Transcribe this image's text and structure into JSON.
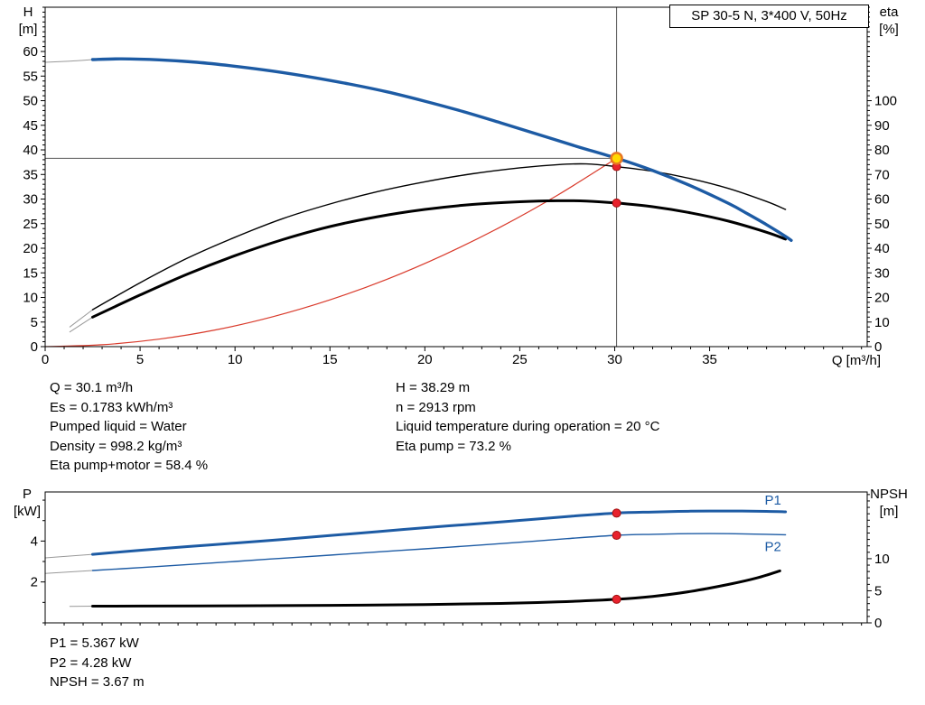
{
  "title_box": {
    "label": "SP 30-5 N, 3*400 V, 50Hz"
  },
  "colors": {
    "curve_blue": "#1d5ba4",
    "curve_black": "#000000",
    "system_red": "#d93a2b",
    "lead_gray": "#999999",
    "guide_gray": "#555555",
    "marker_red": "#e8222d",
    "marker_red_stroke": "#a01010",
    "marker_yellow_fill": "#ffd800",
    "marker_yellow_stroke": "#e87722"
  },
  "top_chart": {
    "left_axis": {
      "name": "H",
      "unit": "[m]"
    },
    "right_axis": {
      "name": "eta",
      "unit": "[%]"
    },
    "x_axis": {
      "label": "Q [m³/h]"
    }
  },
  "bottom_chart": {
    "left_axis": {
      "name": "P",
      "unit": "[kW]"
    },
    "right_axis": {
      "name": "NPSH",
      "unit": "[m]"
    }
  },
  "info_panel": {
    "left": [
      "Q = 30.1 m³/h",
      "Es = 0.1783 kWh/m³",
      "Pumped liquid = Water",
      "Density = 998.2 kg/m³",
      "Eta pump+motor = 58.4 %"
    ],
    "right": [
      "H = 38.29 m",
      "n = 2913 rpm",
      "Liquid temperature during operation = 20 °C",
      "Eta pump = 73.2 %"
    ]
  },
  "results_panel": [
    "P1 = 5.367 kW",
    "P2 = 4.28 kW",
    "NPSH = 3.67 m"
  ],
  "chart_data": [
    {
      "type": "line",
      "title": "SP 30-5 N, 3*400 V, 50Hz",
      "xlabel": "Q [m³/h]",
      "ylabel_left": "H [m]",
      "ylabel_right": "eta [%]",
      "xlim": [
        0,
        43.3
      ],
      "ylim_left": [
        0,
        69
      ],
      "ylim_right": [
        0,
        138
      ],
      "xticks": {
        "minor": 1,
        "labels": [
          0,
          5,
          10,
          15,
          20,
          25,
          30,
          35
        ]
      },
      "yticks_left": {
        "minor": 1,
        "labels": [
          0,
          5,
          10,
          15,
          20,
          25,
          30,
          35,
          40,
          45,
          50,
          55,
          60
        ]
      },
      "yticks_right": {
        "minor": 2,
        "labels": [
          0,
          10,
          20,
          30,
          40,
          50,
          60,
          70,
          80,
          90,
          100
        ]
      },
      "duty_point": {
        "q_m3h": 30.1,
        "h_m": 38.29,
        "eta_pump_pct": 73.2,
        "eta_pump_motor_pct": 58.4,
        "es_kwh_m3": 0.1783,
        "n_rpm": 2913
      },
      "guides": [
        {
          "type": "v",
          "x": 30.1,
          "color": "#555555",
          "name": "duty-flow-guide-line"
        },
        {
          "type": "h",
          "y": 38.29,
          "axis": "left",
          "x_end": 30.1,
          "color": "#555555",
          "name": "duty-head-guide-line"
        }
      ],
      "series": [
        {
          "id": "system-curve",
          "axis": "left",
          "color": "#d93a2b",
          "width": 1.2,
          "points": [
            [
              0,
              0
            ],
            [
              3,
              0.38
            ],
            [
              6,
              1.52
            ],
            [
              9,
              3.42
            ],
            [
              12,
              6.09
            ],
            [
              15,
              9.51
            ],
            [
              18,
              13.69
            ],
            [
              21,
              18.64
            ],
            [
              24,
              24.35
            ],
            [
              27,
              30.81
            ],
            [
              30.1,
              38.29
            ]
          ]
        },
        {
          "id": "head-curve-lead",
          "axis": "left",
          "color": "#999999",
          "width": 1,
          "points": [
            [
              0,
              57.8
            ],
            [
              1.3,
              58.05
            ],
            [
              2.5,
              58.35
            ]
          ]
        },
        {
          "id": "eta-pump-curve-lead",
          "axis": "right",
          "color": "#999999",
          "width": 1,
          "points": [
            [
              1.3,
              8
            ],
            [
              2.5,
              15
            ]
          ]
        },
        {
          "id": "eta-pump-motor-curve-lead",
          "axis": "right",
          "color": "#999999",
          "width": 1,
          "points": [
            [
              1.3,
              6
            ],
            [
              2.5,
              12
            ]
          ]
        },
        {
          "id": "eta-pump-curve",
          "axis": "right",
          "color": "#000000",
          "width": 1.4,
          "points": [
            [
              2.5,
              15
            ],
            [
              5,
              26
            ],
            [
              7.5,
              36
            ],
            [
              10,
              44.5
            ],
            [
              12.5,
              52
            ],
            [
              15,
              58
            ],
            [
              17.5,
              63
            ],
            [
              20,
              67
            ],
            [
              22.5,
              70.3
            ],
            [
              25,
              72.7
            ],
            [
              27,
              74
            ],
            [
              28.5,
              74.3
            ],
            [
              30.1,
              73.2
            ],
            [
              32,
              71.3
            ],
            [
              34,
              68.3
            ],
            [
              36,
              64.3
            ],
            [
              38,
              59
            ],
            [
              39,
              55.8
            ]
          ]
        },
        {
          "id": "eta-pump-motor-curve",
          "axis": "right",
          "color": "#000000",
          "width": 3,
          "points": [
            [
              2.5,
              12
            ],
            [
              5,
              21
            ],
            [
              7.5,
              29.5
            ],
            [
              10,
              37
            ],
            [
              12.5,
              43.5
            ],
            [
              15,
              48.8
            ],
            [
              17.5,
              52.8
            ],
            [
              20,
              55.8
            ],
            [
              22.5,
              57.8
            ],
            [
              25,
              58.9
            ],
            [
              27,
              59.3
            ],
            [
              28.5,
              59.2
            ],
            [
              30.1,
              58.4
            ],
            [
              32,
              56.9
            ],
            [
              34,
              54.4
            ],
            [
              36,
              51
            ],
            [
              38,
              46.5
            ],
            [
              39,
              43.7
            ]
          ]
        },
        {
          "id": "head-curve",
          "axis": "left",
          "color": "#1d5ba4",
          "width": 3.4,
          "points": [
            [
              2.5,
              58.35
            ],
            [
              4,
              58.5
            ],
            [
              6,
              58.3
            ],
            [
              8,
              57.8
            ],
            [
              10,
              57
            ],
            [
              12,
              56
            ],
            [
              14,
              54.8
            ],
            [
              16,
              53.4
            ],
            [
              18,
              51.8
            ],
            [
              20,
              49.9
            ],
            [
              22,
              47.8
            ],
            [
              24,
              45.5
            ],
            [
              26,
              43.1
            ],
            [
              28,
              40.7
            ],
            [
              30.1,
              38.29
            ],
            [
              32,
              35.8
            ],
            [
              34,
              32.7
            ],
            [
              36,
              29.1
            ],
            [
              37,
              27
            ],
            [
              38,
              24.8
            ],
            [
              39,
              22.4
            ],
            [
              39.3,
              21.6
            ]
          ]
        }
      ],
      "markers": [
        {
          "q": 30.1,
          "val": 58.4,
          "axis": "right",
          "style": "red",
          "name": "eta-pump-motor-point-marker"
        },
        {
          "q": 30.1,
          "val": 73.2,
          "axis": "right",
          "style": "red",
          "name": "eta-pump-point-marker"
        },
        {
          "q": 30.1,
          "val": 38.29,
          "axis": "left",
          "style": "duty",
          "name": "duty-point-marker"
        }
      ]
    },
    {
      "type": "line",
      "xlabel": "Q [m³/h]",
      "ylabel_left": "P [kW]",
      "ylabel_right": "NPSH [m]",
      "xlim": [
        0,
        43.3
      ],
      "ylim_left": [
        0,
        6.4
      ],
      "ylim_right": [
        0,
        20.4
      ],
      "xticks": {
        "minor": 1,
        "labels": []
      },
      "yticks_left": {
        "minor": 1,
        "labels": [
          2,
          4
        ]
      },
      "yticks_right": {
        "minor": 1,
        "labels": [
          0,
          5,
          10
        ]
      },
      "duty_point": {
        "q_m3h": 30.1,
        "p1_kw": 5.367,
        "p2_kw": 4.28,
        "npsh_m": 3.67
      },
      "series": [
        {
          "id": "p1-curve-lead",
          "axis": "left",
          "color": "#999999",
          "width": 1,
          "points": [
            [
              0,
              3.18
            ],
            [
              2.5,
              3.35
            ]
          ]
        },
        {
          "id": "p2-curve-lead",
          "axis": "left",
          "color": "#999999",
          "width": 1,
          "points": [
            [
              0,
              2.42
            ],
            [
              2.5,
              2.56
            ]
          ]
        },
        {
          "id": "npsh-curve-lead",
          "axis": "right",
          "color": "#999999",
          "width": 1,
          "points": [
            [
              1.3,
              2.58
            ],
            [
              2.5,
              2.6
            ]
          ]
        },
        {
          "id": "p1-curve",
          "axis": "left",
          "color": "#1d5ba4",
          "width": 3,
          "points": [
            [
              2.5,
              3.35
            ],
            [
              5,
              3.55
            ],
            [
              7.5,
              3.73
            ],
            [
              10,
              3.9
            ],
            [
              12.5,
              4.08
            ],
            [
              15,
              4.27
            ],
            [
              17.5,
              4.46
            ],
            [
              20,
              4.65
            ],
            [
              22.5,
              4.83
            ],
            [
              25,
              5.01
            ],
            [
              27.5,
              5.2
            ],
            [
              30.1,
              5.367
            ],
            [
              32,
              5.42
            ],
            [
              34,
              5.46
            ],
            [
              36,
              5.47
            ],
            [
              38,
              5.45
            ],
            [
              39,
              5.43
            ]
          ]
        },
        {
          "id": "p2-curve",
          "axis": "left",
          "color": "#1d5ba4",
          "width": 1.4,
          "points": [
            [
              2.5,
              2.56
            ],
            [
              5,
              2.7
            ],
            [
              7.5,
              2.85
            ],
            [
              10,
              3
            ],
            [
              12.5,
              3.16
            ],
            [
              15,
              3.31
            ],
            [
              17.5,
              3.47
            ],
            [
              20,
              3.62
            ],
            [
              22.5,
              3.78
            ],
            [
              25,
              3.94
            ],
            [
              27.5,
              4.12
            ],
            [
              30.1,
              4.28
            ],
            [
              32,
              4.33
            ],
            [
              34,
              4.36
            ],
            [
              36,
              4.36
            ],
            [
              38,
              4.33
            ],
            [
              39,
              4.31
            ]
          ]
        },
        {
          "id": "npsh-curve",
          "axis": "right",
          "color": "#000000",
          "width": 3,
          "points": [
            [
              2.5,
              2.6
            ],
            [
              5,
              2.62
            ],
            [
              10,
              2.66
            ],
            [
              15,
              2.73
            ],
            [
              20,
              2.86
            ],
            [
              24,
              3.02
            ],
            [
              27,
              3.27
            ],
            [
              30.1,
              3.67
            ],
            [
              32,
              4.12
            ],
            [
              34,
              4.9
            ],
            [
              36,
              6
            ],
            [
              37.5,
              7
            ],
            [
              38.7,
              8.1
            ]
          ]
        }
      ],
      "markers": [
        {
          "q": 30.1,
          "val": 5.367,
          "axis": "left",
          "style": "red",
          "name": "p1-point-marker"
        },
        {
          "q": 30.1,
          "val": 4.28,
          "axis": "left",
          "style": "red",
          "name": "p2-point-marker"
        },
        {
          "q": 30.1,
          "val": 3.67,
          "axis": "right",
          "style": "red",
          "name": "npsh-point-marker"
        }
      ],
      "annotations": [
        {
          "text": "P1",
          "q": 37.9,
          "val": 5.78,
          "axis": "left",
          "color": "#1d5ba4",
          "name": "p1-curve-label"
        },
        {
          "text": "P2",
          "q": 37.9,
          "val": 3.5,
          "axis": "left",
          "color": "#1d5ba4",
          "name": "p2-curve-label"
        }
      ]
    }
  ]
}
